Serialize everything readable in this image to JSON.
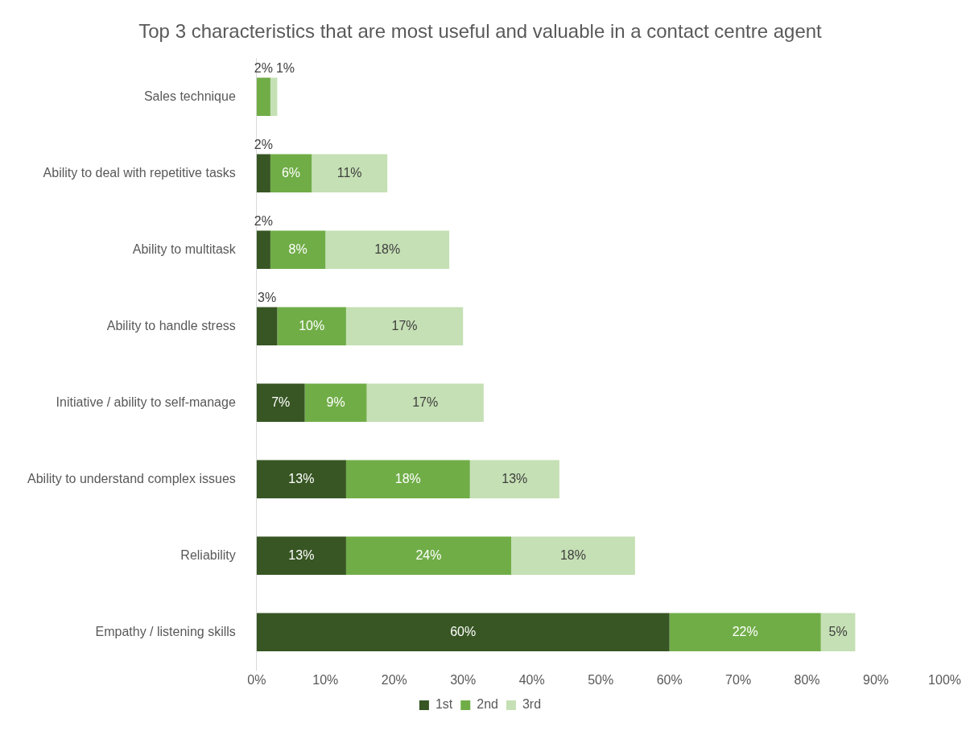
{
  "chart_data": {
    "type": "bar",
    "orientation": "horizontal",
    "stacked": true,
    "title": "Top 3 characteristics that are most useful and valuable in a contact centre agent",
    "categories": [
      "Sales technique",
      "Ability to deal with repetitive tasks",
      "Ability to multitask",
      "Ability to handle stress",
      "Initiative / ability to self-manage",
      "Ability to understand complex issues",
      "Reliability",
      "Empathy / listening skills"
    ],
    "series": [
      {
        "name": "1st",
        "color": "#375623",
        "values": [
          0,
          2,
          2,
          3,
          7,
          13,
          13,
          60
        ],
        "value_labels": [
          null,
          "2%",
          "2%",
          "3%",
          "7%",
          "13%",
          "13%",
          "60%"
        ]
      },
      {
        "name": "2nd",
        "color": "#70ad47",
        "values": [
          2,
          6,
          8,
          10,
          9,
          18,
          24,
          22
        ],
        "value_labels": [
          "2%",
          "6%",
          "8%",
          "10%",
          "9%",
          "18%",
          "24%",
          "22%"
        ]
      },
      {
        "name": "3rd",
        "color": "#c5e0b4",
        "values": [
          1,
          11,
          18,
          17,
          17,
          13,
          18,
          5
        ],
        "value_labels": [
          "1%",
          "11%",
          "18%",
          "17%",
          "17%",
          "13%",
          "18%",
          "5%"
        ]
      }
    ],
    "xlim": [
      0,
      100
    ],
    "xticks": [
      {
        "value": 0,
        "label": "0%"
      },
      {
        "value": 10,
        "label": "10%"
      },
      {
        "value": 20,
        "label": "20%"
      },
      {
        "value": 30,
        "label": "30%"
      },
      {
        "value": 40,
        "label": "40%"
      },
      {
        "value": 50,
        "label": "50%"
      },
      {
        "value": 60,
        "label": "60%"
      },
      {
        "value": 70,
        "label": "70%"
      },
      {
        "value": 80,
        "label": "80%"
      },
      {
        "value": 90,
        "label": "90%"
      },
      {
        "value": 100,
        "label": "100%"
      }
    ],
    "grid": false,
    "legend": "bottom"
  }
}
